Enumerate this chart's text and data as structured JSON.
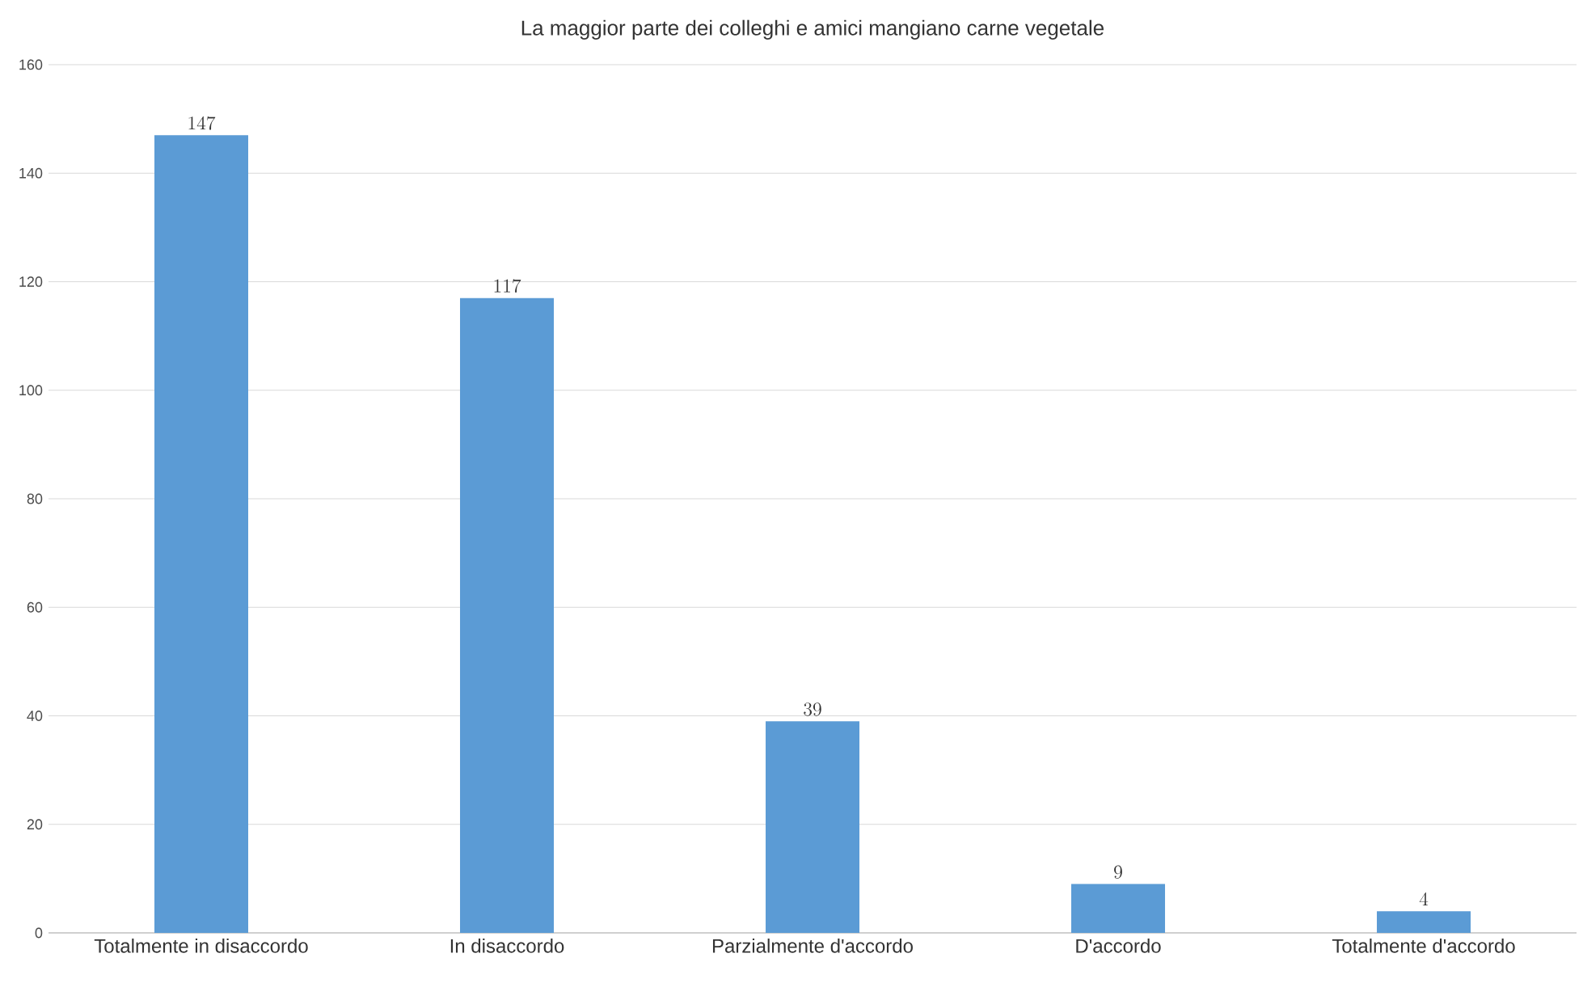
{
  "chart_data": {
    "type": "bar",
    "title": "La maggior parte dei colleghi e amici mangiano carne vegetale",
    "categories": [
      "Totalmente in disaccordo",
      "In disaccordo",
      "Parzialmente d'accordo",
      "D'accordo",
      "Totalmente d'accordo"
    ],
    "values": [
      147,
      117,
      39,
      9,
      4
    ],
    "color": "#5b9bd5",
    "ylim": [
      0,
      160
    ],
    "yticks": [
      0,
      20,
      40,
      60,
      80,
      100,
      120,
      140,
      160
    ],
    "grid": "y",
    "data_labels": true
  }
}
